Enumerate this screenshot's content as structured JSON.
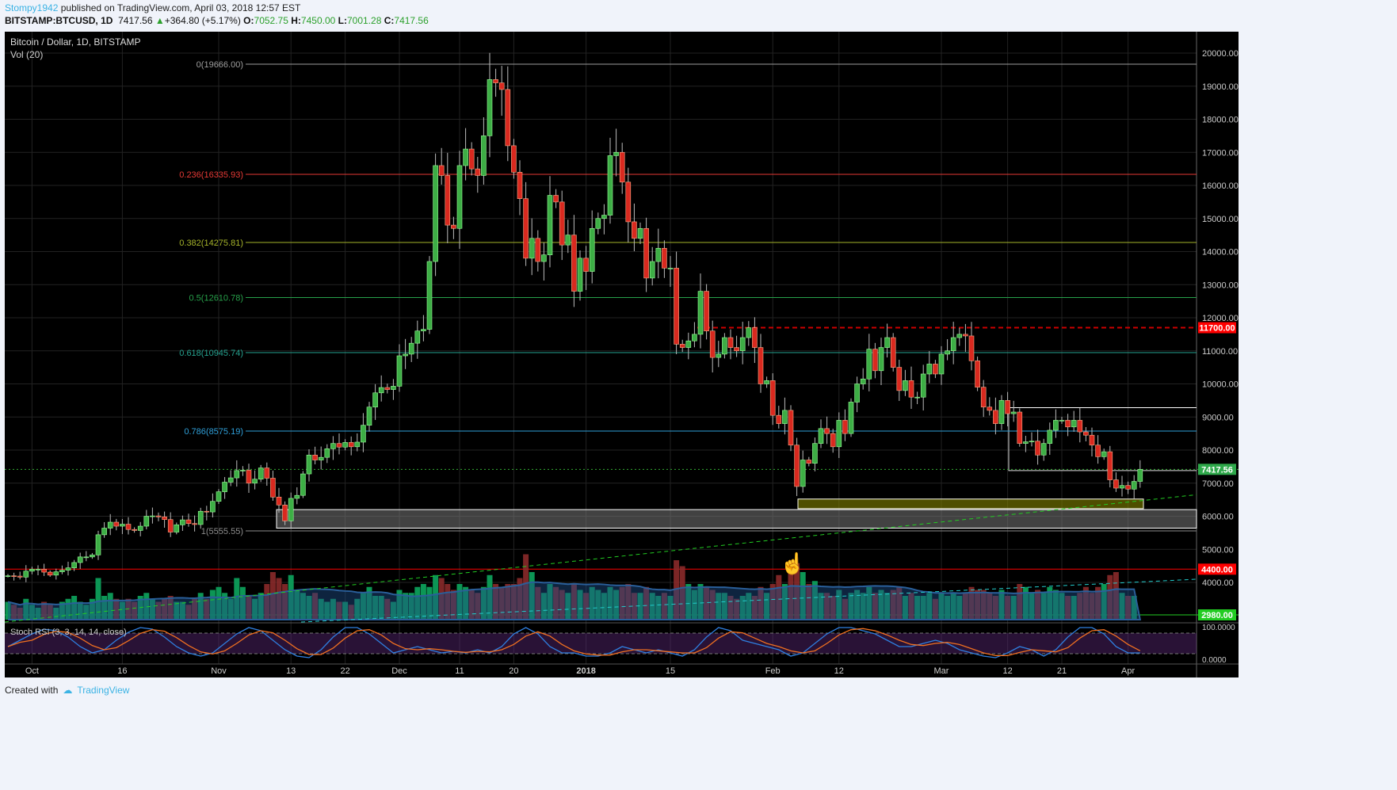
{
  "header": {
    "user": "Stompy1942",
    "published": "published on TradingView.com, April 03, 2018 12:57 EST",
    "symbol": "BITSTAMP:BTCUSD, 1D",
    "last": "7417.56",
    "change": "+364.80 (+5.17%)",
    "o_label": "O:",
    "o": "7052.75",
    "h_label": "H:",
    "h": "7450.00",
    "l_label": "L:",
    "l": "7001.28",
    "c_label": "C:",
    "c": "7417.56"
  },
  "footer": {
    "created_with": "Created with",
    "brand": "TradingView"
  },
  "chart_data": {
    "type": "candlestick",
    "title": "Bitcoin / Dollar, 1D, BITSTAMP",
    "volume_label": "Vol (20)",
    "rsi_label": "Stoch RSI (3, 3, 14, 14, close)",
    "start_date": "2017-09-27",
    "closes": [
      4200,
      4190,
      4160,
      4340,
      4400,
      4400,
      4310,
      4220,
      4320,
      4370,
      4440,
      4600,
      4770,
      4770,
      4830,
      5440,
      5640,
      5820,
      5700,
      5760,
      5600,
      5570,
      5700,
      6000,
      6010,
      5980,
      5900,
      5520,
      5740,
      5890,
      5780,
      5750,
      6150,
      6130,
      6450,
      6740,
      7030,
      7160,
      7380,
      7390,
      7000,
      7120,
      7460,
      7150,
      6580,
      6340,
      5860,
      6540,
      6630,
      7280,
      7850,
      7700,
      7780,
      8040,
      8200,
      8090,
      8230,
      8100,
      8240,
      8750,
      9300,
      9730,
      9890,
      9830,
      9930,
      10850,
      10900,
      11230,
      11600,
      11650,
      13700,
      16600,
      16300,
      14800,
      14700,
      16600,
      17100,
      16500,
      16300,
      17500,
      19200,
      19100,
      18900,
      17200,
      16400,
      15600,
      13800,
      14400,
      13700,
      13900,
      15700,
      15500,
      14200,
      14500,
      12800,
      13800,
      13400,
      14700,
      15000,
      15100,
      16900,
      17000,
      16100,
      14900,
      14400,
      14700,
      13200,
      13700,
      14100,
      13500,
      13500,
      11200,
      11100,
      11300,
      11500,
      12800,
      11600,
      10800,
      10900,
      11400,
      11100,
      11000,
      11400,
      11700,
      11100,
      10000,
      10100,
      9050,
      8800,
      9200,
      8150,
      6900,
      7700,
      7600,
      8200,
      8650,
      8500,
      8100,
      8900,
      8500,
      9450,
      10000,
      10150,
      11050,
      10400,
      11100,
      11400,
      10500,
      9800,
      10100,
      9600,
      9600,
      10300,
      10600,
      10300,
      10900,
      11000,
      11400,
      11500,
      11450,
      10700,
      9900,
      9300,
      9200,
      8800,
      9500,
      9100,
      9150,
      8200,
      8250,
      8270,
      7850,
      8200,
      8600,
      8900,
      8900,
      8700,
      8900,
      8550,
      8450,
      8150,
      7800,
      7950,
      7100,
      6850,
      6930,
      6820,
      7052.75,
      7417.56
    ],
    "volume_rel": [
      30,
      25,
      20,
      35,
      25,
      20,
      30,
      25,
      20,
      30,
      35,
      40,
      30,
      25,
      35,
      70,
      40,
      45,
      35,
      30,
      35,
      30,
      40,
      45,
      35,
      30,
      35,
      40,
      30,
      30,
      25,
      35,
      45,
      35,
      50,
      55,
      45,
      35,
      70,
      55,
      40,
      35,
      45,
      60,
      80,
      70,
      60,
      75,
      50,
      45,
      40,
      45,
      35,
      30,
      35,
      30,
      30,
      25,
      35,
      45,
      55,
      40,
      40,
      35,
      30,
      50,
      45,
      45,
      55,
      60,
      55,
      75,
      70,
      60,
      50,
      60,
      55,
      50,
      45,
      55,
      75,
      60,
      55,
      60,
      60,
      70,
      110,
      80,
      55,
      45,
      60,
      55,
      50,
      45,
      60,
      50,
      45,
      55,
      50,
      45,
      55,
      50,
      55,
      60,
      45,
      45,
      55,
      45,
      40,
      45,
      40,
      100,
      90,
      60,
      50,
      60,
      55,
      50,
      45,
      45,
      40,
      35,
      40,
      45,
      40,
      55,
      45,
      60,
      75,
      60,
      85,
      95,
      80,
      60,
      65,
      45,
      45,
      40,
      50,
      35,
      45,
      50,
      45,
      55,
      45,
      50,
      45,
      50,
      55,
      40,
      45,
      40,
      40,
      45,
      35,
      45,
      40,
      45,
      40,
      45,
      55,
      50,
      50,
      45,
      40,
      50,
      40,
      40,
      60,
      55,
      45,
      50,
      45,
      55,
      50,
      45,
      40,
      40,
      45,
      55,
      45,
      55,
      60,
      75,
      80,
      45,
      40,
      40
    ],
    "stoch_rsi_k": [
      40,
      60,
      80,
      95,
      90,
      70,
      40,
      20,
      30,
      60,
      85,
      100,
      95,
      70,
      40,
      20,
      10,
      20,
      50,
      80,
      100,
      90,
      60,
      30,
      10,
      5,
      30,
      70,
      100,
      100,
      80,
      50,
      20,
      30,
      40,
      30,
      20,
      25,
      20,
      30,
      20,
      40,
      80,
      100,
      80,
      40,
      20,
      20,
      10,
      10,
      20,
      40,
      30,
      20,
      30,
      20,
      10,
      30,
      70,
      100,
      90,
      60,
      50,
      40,
      30,
      10,
      20,
      50,
      80,
      100,
      100,
      90,
      80,
      60,
      40,
      40,
      50,
      60,
      50,
      30,
      20,
      10,
      5,
      20,
      40,
      30,
      10,
      30,
      70,
      100,
      100,
      80,
      40,
      20,
      20
    ],
    "y_axis": {
      "ticks": [
        "20000.00",
        "19000.00",
        "18000.00",
        "17000.00",
        "16000.00",
        "15000.00",
        "14000.00",
        "13000.00",
        "12000.00",
        "11000.00",
        "10000.00",
        "9000.00",
        "8000.00",
        "7000.00",
        "6000.00",
        "5000.00",
        "4000.00"
      ],
      "range": [
        3000,
        20300
      ]
    },
    "x_axis": {
      "ticks": [
        {
          "d": "2017-10-01",
          "label": "Oct"
        },
        {
          "d": "2017-10-16",
          "label": "16"
        },
        {
          "d": "2017-11-01",
          "label": "Nov"
        },
        {
          "d": "2017-11-13",
          "label": "13"
        },
        {
          "d": "2017-11-22",
          "label": "22"
        },
        {
          "d": "2017-12-01",
          "label": "Dec"
        },
        {
          "d": "2017-12-11",
          "label": "11"
        },
        {
          "d": "2017-12-20",
          "label": "20"
        },
        {
          "d": "2018-01-01",
          "label": "2018"
        },
        {
          "d": "2018-01-15",
          "label": "15"
        },
        {
          "d": "2018-02-01",
          "label": "Feb"
        },
        {
          "d": "2018-02-12",
          "label": "12"
        },
        {
          "d": "2018-03-01",
          "label": "Mar"
        },
        {
          "d": "2018-03-12",
          "label": "12"
        },
        {
          "d": "2018-03-21",
          "label": "21"
        },
        {
          "d": "2018-04-01",
          "label": "Apr"
        }
      ]
    },
    "fib_levels": [
      {
        "label": "0(19666.00)",
        "price": 19666,
        "color": "#9e9e9e"
      },
      {
        "label": "0.236(16335.93)",
        "price": 16335.93,
        "color": "#e53935"
      },
      {
        "label": "0.382(14275.81)",
        "price": 14275.81,
        "color": "#a5b32a"
      },
      {
        "label": "0.5(12610.78)",
        "price": 12610.78,
        "color": "#27a04a"
      },
      {
        "label": "0.618(10945.74)",
        "price": 10945.74,
        "color": "#25a28f"
      },
      {
        "label": "0.786(8575.19)",
        "price": 8575.19,
        "color": "#2f9fd8"
      },
      {
        "label": "1(5555.55)",
        "price": 5555.55,
        "color": "#8e8e8e"
      }
    ],
    "price_labels": [
      {
        "text": "11700.00",
        "price": 11700,
        "color": "#ff0000"
      },
      {
        "text": "7417.56",
        "price": 7417.56,
        "color": "#2ea84a"
      },
      {
        "text": "4400.00",
        "price": 4400,
        "color": "#ff0000"
      },
      {
        "text": "2980.00",
        "price": 3050,
        "color": "#22cc22"
      }
    ],
    "rsi_axis": [
      "100.0000",
      "0.0000"
    ],
    "colors": {
      "up": "#3dae45",
      "down": "#d9291f",
      "up_vol": "#0d9e5a",
      "down_vol": "#8a2a2a"
    }
  }
}
